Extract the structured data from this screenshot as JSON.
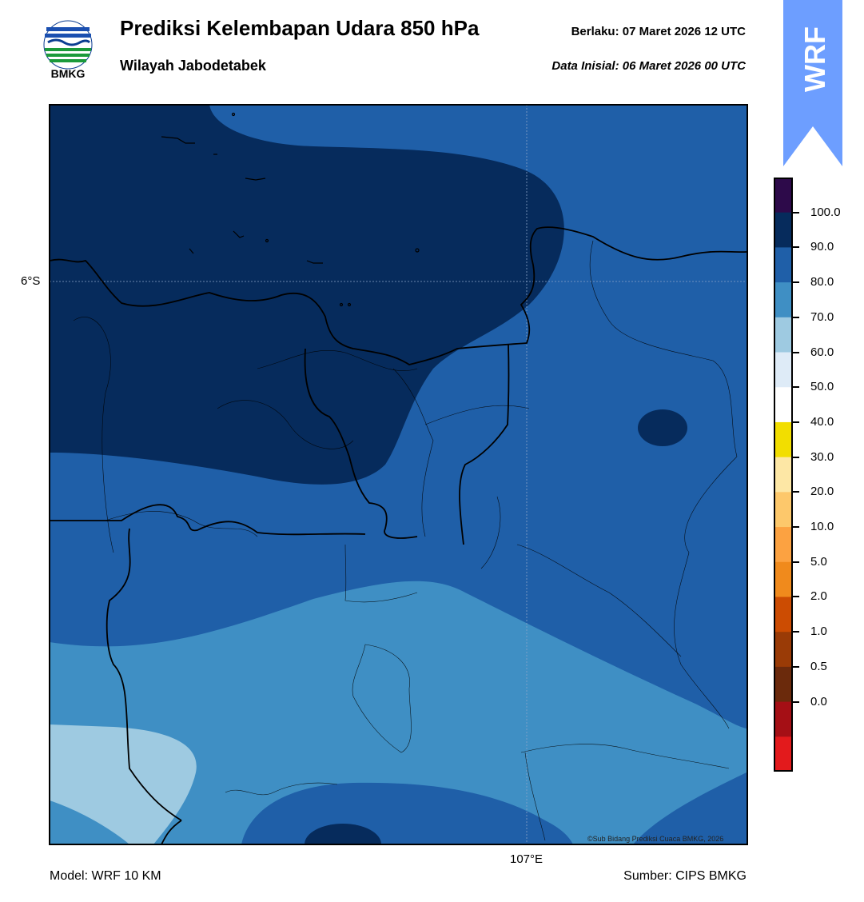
{
  "header": {
    "logo_text": "BMKG",
    "title": "Prediksi Kelembapan Udara 850 hPa",
    "subtitle": "Wilayah Jabodetabek",
    "valid_time": "Berlaku:  07 Maret 2026 12 UTC",
    "init_time": "Data Inisial:  06 Maret 2026 00 UTC",
    "badge": "WRF"
  },
  "map": {
    "lat_label": "6°S",
    "lon_label": "107°E",
    "credit": "©Sub Bidang Prediksi Cuaca BMKG, 2026"
  },
  "colorbar": {
    "labels": [
      "100.0",
      "90.0",
      "80.0",
      "70.0",
      "60.0",
      "50.0",
      "40.0",
      "30.0",
      "20.0",
      "10.0",
      "5.0",
      "2.0",
      "1.0",
      "0.5",
      "0.0"
    ],
    "colors_top_to_bottom": [
      "#2d0a4a",
      "#062b5c",
      "#1f5fa8",
      "#3f8fc4",
      "#9ecae1",
      "#deebf7",
      "#ffffff",
      "#f2de00",
      "#fde7a5",
      "#fdc86b",
      "#fca241",
      "#f08a1c",
      "#cc4c02",
      "#9a3b06",
      "#6b2a0c",
      "#a50f15",
      "#e31a1c"
    ],
    "palette": {
      "rh_90_100": "#062b5c",
      "rh_80_90": "#1f5fa8",
      "rh_70_80": "#3f8fc4",
      "rh_60_70": "#9ecae1",
      "border": "#000000",
      "badge": "#6d9eff"
    }
  },
  "footer": {
    "model": "Model: WRF 10 KM",
    "source": "Sumber: CIPS BMKG"
  }
}
